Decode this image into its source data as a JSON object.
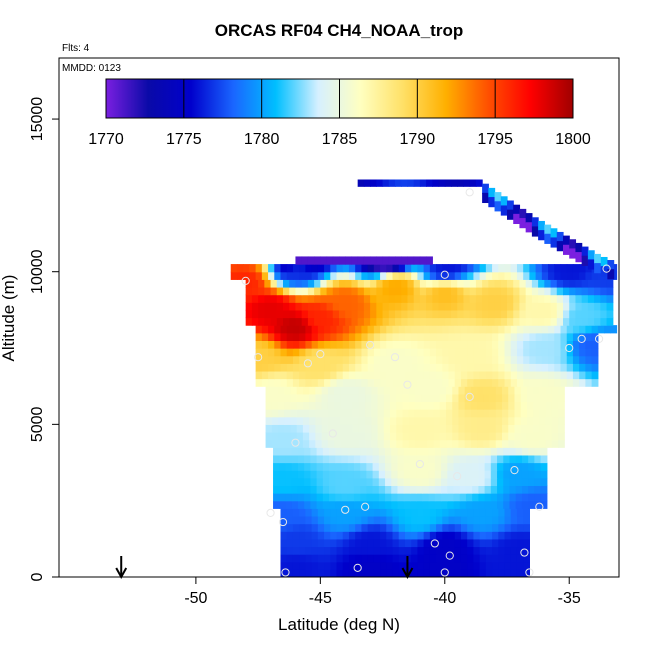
{
  "chart_data": {
    "type": "heatmap",
    "title": "ORCAS RF04 CH4_NOAA_trop",
    "annotations": {
      "flights": "Flts: 4",
      "date": "MMDD: 0123"
    },
    "xlabel": "Latitude (deg N)",
    "ylabel": "Altitude (m)",
    "xlim": [
      -55.5,
      -33
    ],
    "ylim": [
      0,
      17000
    ],
    "x_ticks": [
      -50,
      -45,
      -40,
      -35
    ],
    "y_ticks": [
      0,
      5000,
      10000,
      15000
    ],
    "colorbar": {
      "ticks": [
        1770,
        1775,
        1780,
        1785,
        1790,
        1795,
        1800
      ],
      "range": [
        1770,
        1800
      ],
      "colors": [
        "#7a1fe0",
        "#0a0aa8",
        "#0000cc",
        "#1a66ff",
        "#00bfff",
        "#d6f0ff",
        "#ffffc0",
        "#ffe066",
        "#ffb000",
        "#ff5000",
        "#ff0000",
        "#a00000"
      ]
    },
    "field_points": [
      [
        -48.0,
        9700,
        1796
      ],
      [
        -47.0,
        8800,
        1798
      ],
      [
        -46.0,
        8200,
        1799
      ],
      [
        -45.0,
        8500,
        1796
      ],
      [
        -44.0,
        9000,
        1794
      ],
      [
        -42.0,
        9500,
        1792
      ],
      [
        -40.0,
        9300,
        1791
      ],
      [
        -38.0,
        9000,
        1790
      ],
      [
        -36.0,
        8700,
        1787
      ],
      [
        -34.5,
        8500,
        1782
      ],
      [
        -47.5,
        7200,
        1790
      ],
      [
        -45.0,
        7000,
        1789
      ],
      [
        -42.0,
        7000,
        1786
      ],
      [
        -39.0,
        7300,
        1787
      ],
      [
        -36.0,
        7500,
        1783
      ],
      [
        -34.0,
        7600,
        1778
      ],
      [
        -47.0,
        6000,
        1786
      ],
      [
        -44.0,
        6000,
        1785
      ],
      [
        -40.5,
        6200,
        1786
      ],
      [
        -38.5,
        5900,
        1789
      ],
      [
        -36.0,
        6000,
        1786
      ],
      [
        -46.5,
        4500,
        1783
      ],
      [
        -44.0,
        4800,
        1785
      ],
      [
        -41.0,
        4800,
        1787
      ],
      [
        -38.5,
        4900,
        1788
      ],
      [
        -36.5,
        4600,
        1786
      ],
      [
        -46.5,
        3200,
        1781
      ],
      [
        -44.0,
        3000,
        1782
      ],
      [
        -41.0,
        3500,
        1786
      ],
      [
        -39.0,
        3300,
        1784
      ],
      [
        -37.0,
        3400,
        1780
      ],
      [
        -46.5,
        2000,
        1778
      ],
      [
        -44.0,
        2100,
        1780
      ],
      [
        -41.0,
        2000,
        1781
      ],
      [
        -38.5,
        2100,
        1780
      ],
      [
        -36.5,
        2300,
        1778
      ],
      [
        -46.0,
        1200,
        1777
      ],
      [
        -43.0,
        1100,
        1776
      ],
      [
        -40.0,
        1000,
        1775
      ],
      [
        -37.0,
        900,
        1776
      ],
      [
        -46.0,
        300,
        1776
      ],
      [
        -43.0,
        300,
        1775
      ],
      [
        -40.0,
        300,
        1775
      ],
      [
        -37.0,
        300,
        1776
      ],
      [
        -46.0,
        10100,
        1777
      ],
      [
        -40.0,
        10100,
        1776
      ],
      [
        -35.0,
        10100,
        1776
      ],
      [
        -33.5,
        10000,
        1777
      ],
      [
        -42.5,
        10400,
        1771
      ],
      [
        -46.0,
        10400,
        1771
      ]
    ],
    "upper_track": {
      "segment": [
        [
          -43.5,
          12900
        ],
        [
          -38.5,
          12900
        ]
      ],
      "descent": [
        [
          -38.5,
          12700
        ],
        [
          -36.5,
          11600
        ],
        [
          -34.0,
          10400
        ],
        [
          -33.2,
          10100
        ]
      ],
      "value_range": [
        1772,
        1782
      ]
    },
    "sample_points": [
      [
        -48.0,
        9700
      ],
      [
        -47.5,
        7200
      ],
      [
        -45.0,
        7300
      ],
      [
        -45.5,
        7000
      ],
      [
        -43.0,
        7600
      ],
      [
        -42.0,
        7200
      ],
      [
        -41.5,
        6300
      ],
      [
        -40.0,
        9900
      ],
      [
        -39.0,
        5900
      ],
      [
        -35.0,
        7500
      ],
      [
        -34.5,
        7800
      ],
      [
        -33.8,
        7800
      ],
      [
        -33.5,
        10100
      ],
      [
        -39.0,
        12600
      ],
      [
        -46.0,
        4400
      ],
      [
        -44.5,
        4700
      ],
      [
        -41.0,
        3700
      ],
      [
        -39.5,
        3300
      ],
      [
        -37.2,
        3500
      ],
      [
        -36.2,
        2300
      ],
      [
        -47.0,
        2100
      ],
      [
        -46.5,
        1800
      ],
      [
        -44.0,
        2200
      ],
      [
        -43.2,
        2300
      ],
      [
        -40.4,
        1100
      ],
      [
        -39.8,
        700
      ],
      [
        -36.8,
        800
      ],
      [
        -46.4,
        150
      ],
      [
        -43.5,
        300
      ],
      [
        -40.0,
        150
      ],
      [
        -36.6,
        150
      ]
    ],
    "arrows_x": [
      -53.0,
      -41.5
    ]
  }
}
